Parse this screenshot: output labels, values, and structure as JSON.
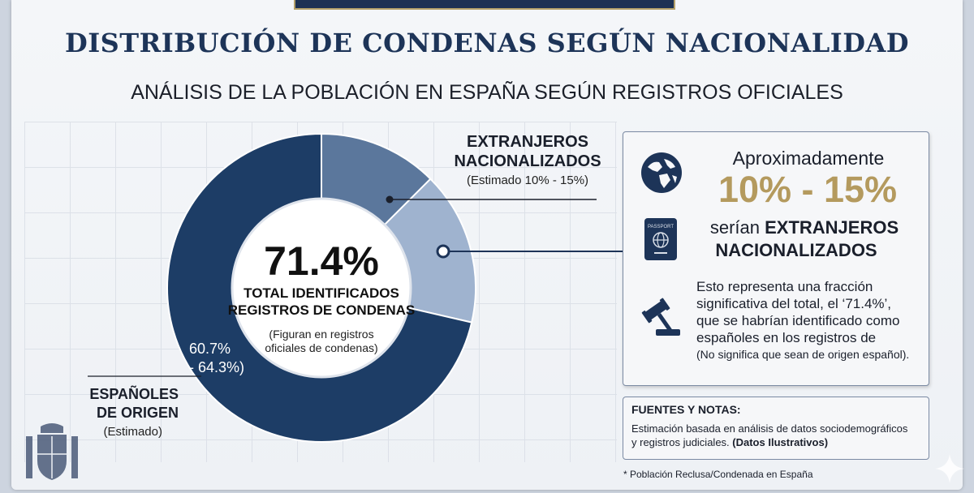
{
  "title": "DISTRIBUCIÓN DE CONDENAS SEGÚN NACIONALIDAD",
  "subtitle": "ANÁLISIS DE LA POBLACIÓN EN ESPAÑA SEGÚN REGISTROS OFICIALES",
  "colors": {
    "navy": "#1d3d66",
    "mid": "#5b779c",
    "light": "#9fb3cf",
    "gold": "#b49a5e"
  },
  "chart_data": {
    "type": "pie",
    "donut": true,
    "slices": [
      {
        "label": "EXTRANJEROS NACIONALIZADOS",
        "value": 12.5,
        "color": "#5b779c"
      },
      {
        "label": "",
        "value": 16.1,
        "color": "#9fb3cf"
      },
      {
        "label": "ESPAÑOLES DE ORIGEN",
        "value": 71.4,
        "color": "#1d3d66"
      }
    ],
    "center": {
      "value": "71.4%",
      "line1": "TOTAL IDENTIFICADOS",
      "line2": "REGISTROS DE CONDENAS",
      "note1": "(Figuran en registros",
      "note2": "oficiales de condenas)"
    },
    "espanoles": {
      "pct_line1": "60.7%",
      "pct_line2": "- 64.3%)",
      "heading_line1": "ESPAÑOLES",
      "heading_line2": "DE ORIGEN",
      "sub": "(Estimado)"
    },
    "extranjeros": {
      "heading_line1": "EXTRANJEROS",
      "heading_line2": "NACIONALIZADOS",
      "sub": "(Estimado 10% - 15%)"
    }
  },
  "info_card": {
    "approx": "Aproximadamente",
    "range": "10% - 15%",
    "serian_prefix": "serían ",
    "serian_bold": "EXTRANJEROS",
    "nacionalizados": "NACIONALIZADOS",
    "desc_line1": "Esto representa una fracción",
    "desc_line2": "significativa del total, el ‘71.4%’,",
    "desc_line3": "que se habrían identificado como",
    "desc_line4": "españoles en los registros de",
    "desc_line5": "(No significa que sean de origen español).",
    "passport_label": "PASSPORT",
    "icons": [
      "globe-icon",
      "passport-icon",
      "gavel-icon"
    ]
  },
  "notes": {
    "heading": "FUENTES Y NOTAS:",
    "line1": "Estimación basada en análisis de datos sociodemográficos",
    "line2_prefix": "y registros judiciales. ",
    "line2_bold": "(Datos Ilustrativos)"
  },
  "footnote": "* Población Reclusa/Condenada en España"
}
